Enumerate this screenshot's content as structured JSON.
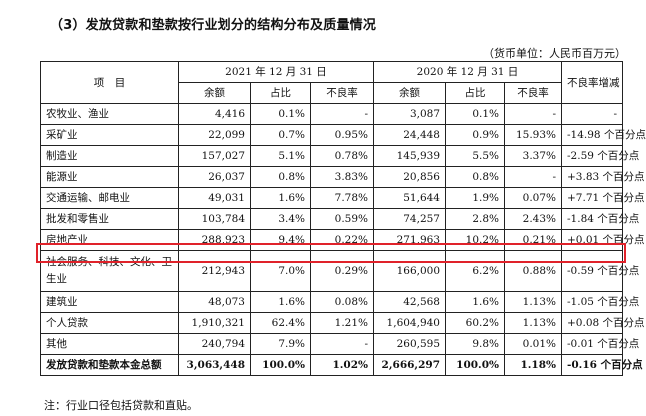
{
  "title": "（3）发放贷款和垫款按行业划分的结构分布及质量情况",
  "unit": "（货币单位：人民币百万元）",
  "header": {
    "item": "项　目",
    "period_2021": "2021 年 12 月 31 日",
    "period_2020": "2020 年 12 月 31 日",
    "npl_change": "不良率增减",
    "balance": "余额",
    "share": "占比",
    "npl": "不良率"
  },
  "rows": [
    {
      "name": "农牧业、渔业",
      "b21": "4,416",
      "s21": "0.1%",
      "n21": "-",
      "b20": "3,087",
      "s20": "0.1%",
      "n20": "-",
      "chg": "-"
    },
    {
      "name": "采矿业",
      "b21": "22,099",
      "s21": "0.7%",
      "n21": "0.95%",
      "b20": "24,448",
      "s20": "0.9%",
      "n20": "15.93%",
      "chg": "-14.98 个百分点"
    },
    {
      "name": "制造业",
      "b21": "157,027",
      "s21": "5.1%",
      "n21": "0.78%",
      "b20": "145,939",
      "s20": "5.5%",
      "n20": "3.37%",
      "chg": "-2.59 个百分点"
    },
    {
      "name": "能源业",
      "b21": "26,037",
      "s21": "0.8%",
      "n21": "3.83%",
      "b20": "20,856",
      "s20": "0.8%",
      "n20": "-",
      "chg": "+3.83 个百分点"
    },
    {
      "name": "交通运输、邮电业",
      "b21": "49,031",
      "s21": "1.6%",
      "n21": "7.78%",
      "b20": "51,644",
      "s20": "1.9%",
      "n20": "0.07%",
      "chg": "+7.71 个百分点"
    },
    {
      "name": "批发和零售业",
      "b21": "103,784",
      "s21": "3.4%",
      "n21": "0.59%",
      "b20": "74,257",
      "s20": "2.8%",
      "n20": "2.43%",
      "chg": "-1.84 个百分点"
    },
    {
      "name": "房地产业",
      "b21": "288,923",
      "s21": "9.4%",
      "n21": "0.22%",
      "b20": "271,963",
      "s20": "10.2%",
      "n20": "0.21%",
      "chg": "+0.01 个百分点"
    },
    {
      "name": "社会服务、科技、文化、卫生业",
      "b21": "212,943",
      "s21": "7.0%",
      "n21": "0.29%",
      "b20": "166,000",
      "s20": "6.2%",
      "n20": "0.88%",
      "chg": "-0.59 个百分点"
    },
    {
      "name": "建筑业",
      "b21": "48,073",
      "s21": "1.6%",
      "n21": "0.08%",
      "b20": "42,568",
      "s20": "1.6%",
      "n20": "1.13%",
      "chg": "-1.05 个百分点"
    },
    {
      "name": "个人贷款",
      "b21": "1,910,321",
      "s21": "62.4%",
      "n21": "1.21%",
      "b20": "1,604,940",
      "s20": "60.2%",
      "n20": "1.13%",
      "chg": "+0.08 个百分点"
    },
    {
      "name": "其他",
      "b21": "240,794",
      "s21": "7.9%",
      "n21": "-",
      "b20": "260,595",
      "s20": "9.8%",
      "n20": "0.01%",
      "chg": "-0.01 个百分点"
    },
    {
      "name": "发放贷款和垫款本金总额",
      "b21": "3,063,448",
      "s21": "100.0%",
      "n21": "1.02%",
      "b20": "2,666,297",
      "s20": "100.0%",
      "n20": "1.18%",
      "chg": "-0.16 个百分点"
    }
  ],
  "highlight_color": "#e0222a",
  "note": "注：行业口径包括贷款和直贴。"
}
